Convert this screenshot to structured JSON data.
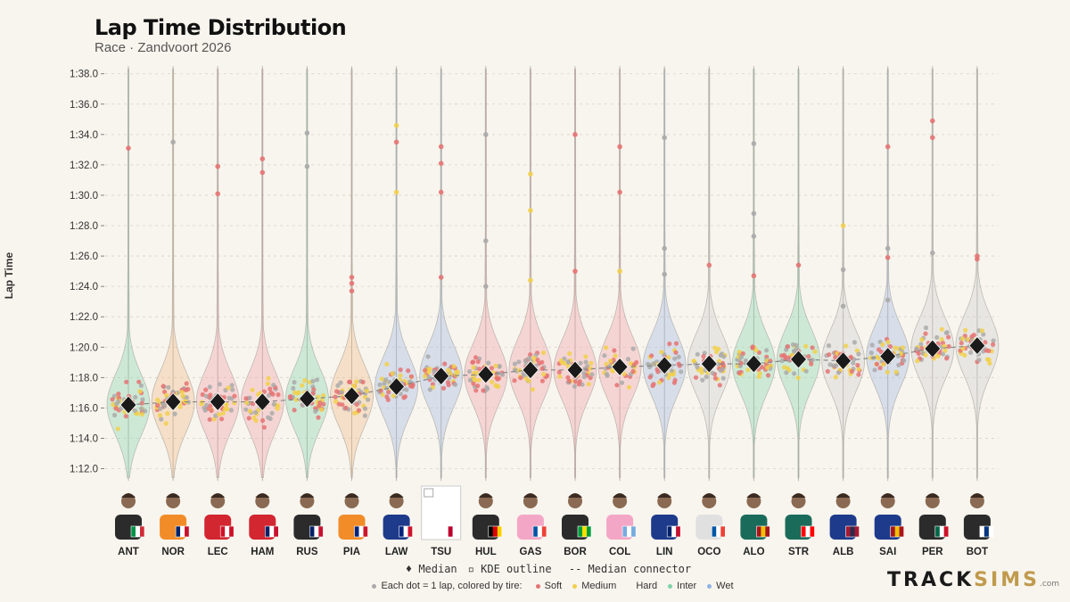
{
  "title": "Lap Time Distribution",
  "subtitle": "Race · Zandvoort 2026",
  "chart_data": {
    "type": "violin",
    "ylabel": "Lap Time",
    "ylim_seconds": [
      70.5,
      99
    ],
    "yticks": [
      "1:12.0",
      "1:14.0",
      "1:16.0",
      "1:18.0",
      "1:20.0",
      "1:22.0",
      "1:24.0",
      "1:26.0",
      "1:28.0",
      "1:30.0",
      "1:32.0",
      "1:34.0",
      "1:36.0",
      "1:38.0"
    ],
    "ytick_values": [
      72,
      74,
      76,
      78,
      80,
      82,
      84,
      86,
      88,
      90,
      92,
      94,
      96,
      98
    ],
    "grid": "horizontal dashed",
    "drivers": [
      {
        "code": "ANT",
        "median": 76.2,
        "violin_color": "#7fd3a8",
        "flag": [
          "#009246",
          "#ffffff",
          "#ce2b37"
        ],
        "suit": "#2b2b2b",
        "outliers": [
          {
            "v": 93.1,
            "c": "#e57373"
          }
        ]
      },
      {
        "code": "NOR",
        "median": 76.4,
        "violin_color": "#f2b880",
        "flag": [
          "#012169",
          "#ffffff",
          "#c8102e"
        ],
        "suit": "#f28c28",
        "outliers": [
          {
            "v": 93.5,
            "c": "#aaaaaa"
          }
        ]
      },
      {
        "code": "LEC",
        "median": 76.4,
        "violin_color": "#f29aa4",
        "flag": [
          "#ce1126",
          "#ffffff",
          "#ce1126"
        ],
        "suit": "#d22630",
        "outliers": [
          {
            "v": 91.9,
            "c": "#e57373"
          },
          {
            "v": 90.1,
            "c": "#e57373"
          }
        ]
      },
      {
        "code": "HAM",
        "median": 76.4,
        "violin_color": "#f29aa4",
        "flag": [
          "#012169",
          "#ffffff",
          "#c8102e"
        ],
        "suit": "#d22630",
        "outliers": [
          {
            "v": 92.4,
            "c": "#e57373"
          },
          {
            "v": 91.5,
            "c": "#e57373"
          }
        ]
      },
      {
        "code": "RUS",
        "median": 76.6,
        "violin_color": "#7fd3a8",
        "flag": [
          "#012169",
          "#ffffff",
          "#c8102e"
        ],
        "suit": "#2b2b2b",
        "outliers": [
          {
            "v": 94.1,
            "c": "#aaaaaa"
          },
          {
            "v": 91.9,
            "c": "#aaaaaa"
          }
        ]
      },
      {
        "code": "PIA",
        "median": 76.8,
        "violin_color": "#f2b880",
        "flag": [
          "#00247d",
          "#ffffff",
          "#cc142b"
        ],
        "suit": "#f28c28",
        "outliers": [
          {
            "v": 84.6,
            "c": "#e57373"
          },
          {
            "v": 84.2,
            "c": "#e57373"
          },
          {
            "v": 83.7,
            "c": "#e57373"
          }
        ]
      },
      {
        "code": "LAW",
        "median": 77.4,
        "violin_color": "#9ab5e0",
        "flag": [
          "#00247d",
          "#ffffff",
          "#cc142b"
        ],
        "suit": "#1e3a8a",
        "outliers": [
          {
            "v": 94.6,
            "c": "#f1d04b"
          },
          {
            "v": 93.5,
            "c": "#e57373"
          },
          {
            "v": 90.2,
            "c": "#f1d04b"
          }
        ]
      },
      {
        "code": "TSU",
        "median": 78.1,
        "violin_color": "#9ab5e0",
        "flag": [
          "#ffffff",
          "#bc002d",
          "#ffffff"
        ],
        "suit": "none",
        "outliers": [
          {
            "v": 93.2,
            "c": "#e57373"
          },
          {
            "v": 92.1,
            "c": "#e57373"
          },
          {
            "v": 90.2,
            "c": "#e57373"
          },
          {
            "v": 84.6,
            "c": "#e57373"
          }
        ]
      },
      {
        "code": "HUL",
        "median": 78.2,
        "violin_color": "#f29aa4",
        "flag": [
          "#000000",
          "#dd0000",
          "#ffce00"
        ],
        "suit": "#2b2b2b",
        "outliers": [
          {
            "v": 94.0,
            "c": "#aaaaaa"
          },
          {
            "v": 87.0,
            "c": "#aaaaaa"
          },
          {
            "v": 84.0,
            "c": "#aaaaaa"
          }
        ]
      },
      {
        "code": "GAS",
        "median": 78.5,
        "violin_color": "#f29aa4",
        "flag": [
          "#0055a4",
          "#ffffff",
          "#ef4135"
        ],
        "suit": "#f4a6c6",
        "outliers": [
          {
            "v": 91.4,
            "c": "#f1d04b"
          },
          {
            "v": 89.0,
            "c": "#f1d04b"
          },
          {
            "v": 84.4,
            "c": "#f1d04b"
          }
        ]
      },
      {
        "code": "BOR",
        "median": 78.5,
        "violin_color": "#f29aa4",
        "flag": [
          "#009c3b",
          "#ffdf00",
          "#009c3b"
        ],
        "suit": "#2b2b2b",
        "outliers": [
          {
            "v": 94.0,
            "c": "#e57373"
          },
          {
            "v": 85.0,
            "c": "#e57373"
          }
        ]
      },
      {
        "code": "COL",
        "median": 78.7,
        "violin_color": "#f29aa4",
        "flag": [
          "#74acdf",
          "#ffffff",
          "#74acdf"
        ],
        "suit": "#f4a6c6",
        "outliers": [
          {
            "v": 93.2,
            "c": "#e57373"
          },
          {
            "v": 90.2,
            "c": "#e57373"
          },
          {
            "v": 85.0,
            "c": "#f1d04b"
          }
        ]
      },
      {
        "code": "LIN",
        "median": 78.8,
        "violin_color": "#9ab5e0",
        "flag": [
          "#012169",
          "#ffffff",
          "#c8102e"
        ],
        "suit": "#1e3a8a",
        "outliers": [
          {
            "v": 93.8,
            "c": "#aaaaaa"
          },
          {
            "v": 86.5,
            "c": "#aaaaaa"
          },
          {
            "v": 84.8,
            "c": "#aaaaaa"
          }
        ]
      },
      {
        "code": "OCO",
        "median": 78.9,
        "violin_color": "#cccccc",
        "flag": [
          "#0055a4",
          "#ffffff",
          "#ef4135"
        ],
        "suit": "#e0e0e0",
        "outliers": [
          {
            "v": 85.4,
            "c": "#e57373"
          }
        ]
      },
      {
        "code": "ALO",
        "median": 78.9,
        "violin_color": "#7fd3a8",
        "flag": [
          "#aa151b",
          "#f1bf00",
          "#aa151b"
        ],
        "suit": "#1b6b5a",
        "outliers": [
          {
            "v": 93.4,
            "c": "#aaaaaa"
          },
          {
            "v": 88.8,
            "c": "#aaaaaa"
          },
          {
            "v": 87.3,
            "c": "#aaaaaa"
          },
          {
            "v": 84.7,
            "c": "#e57373"
          }
        ]
      },
      {
        "code": "STR",
        "median": 79.2,
        "violin_color": "#7fd3a8",
        "flag": [
          "#ff0000",
          "#ffffff",
          "#ff0000"
        ],
        "suit": "#1b6b5a",
        "outliers": [
          {
            "v": 85.4,
            "c": "#e57373"
          }
        ]
      },
      {
        "code": "ALB",
        "median": 79.1,
        "violin_color": "#cccccc",
        "flag": [
          "#a51931",
          "#2d2a4a",
          "#a51931"
        ],
        "suit": "#1e3a8a",
        "outliers": [
          {
            "v": 88.0,
            "c": "#f1d04b"
          },
          {
            "v": 85.1,
            "c": "#aaaaaa"
          },
          {
            "v": 82.7,
            "c": "#aaaaaa"
          }
        ]
      },
      {
        "code": "SAI",
        "median": 79.4,
        "violin_color": "#9ab5e0",
        "flag": [
          "#aa151b",
          "#f1bf00",
          "#aa151b"
        ],
        "suit": "#1e3a8a",
        "outliers": [
          {
            "v": 93.2,
            "c": "#e57373"
          },
          {
            "v": 86.5,
            "c": "#aaaaaa"
          },
          {
            "v": 85.9,
            "c": "#e57373"
          },
          {
            "v": 83.1,
            "c": "#aaaaaa"
          }
        ]
      },
      {
        "code": "PER",
        "median": 79.9,
        "violin_color": "#cccccc",
        "flag": [
          "#006847",
          "#ffffff",
          "#ce1126"
        ],
        "suit": "#2b2b2b",
        "outliers": [
          {
            "v": 94.9,
            "c": "#e57373"
          },
          {
            "v": 93.8,
            "c": "#e57373"
          },
          {
            "v": 86.2,
            "c": "#aaaaaa"
          }
        ]
      },
      {
        "code": "BOT",
        "median": 80.1,
        "violin_color": "#cccccc",
        "flag": [
          "#ffffff",
          "#003580",
          "#ffffff"
        ],
        "suit": "#2b2b2b",
        "outliers": [
          {
            "v": 86.0,
            "c": "#e57373"
          },
          {
            "v": 85.8,
            "c": "#e57373"
          }
        ]
      }
    ]
  },
  "legend": {
    "median": "Median",
    "kde": "KDE outline",
    "connector": "Median connector",
    "dots_note": "Each dot = 1 lap, colored by tire:",
    "tires": [
      {
        "label": "Soft",
        "color": "#e57373"
      },
      {
        "label": "Medium",
        "color": "#f1d04b"
      },
      {
        "label": "Hard",
        "color": "#f8f5ee"
      },
      {
        "label": "Inter",
        "color": "#7fd3a8"
      },
      {
        "label": "Wet",
        "color": "#8fb3e6"
      }
    ]
  },
  "brand": {
    "part1": "TRACK",
    "part2": "SIMS",
    "suffix": ".com"
  }
}
